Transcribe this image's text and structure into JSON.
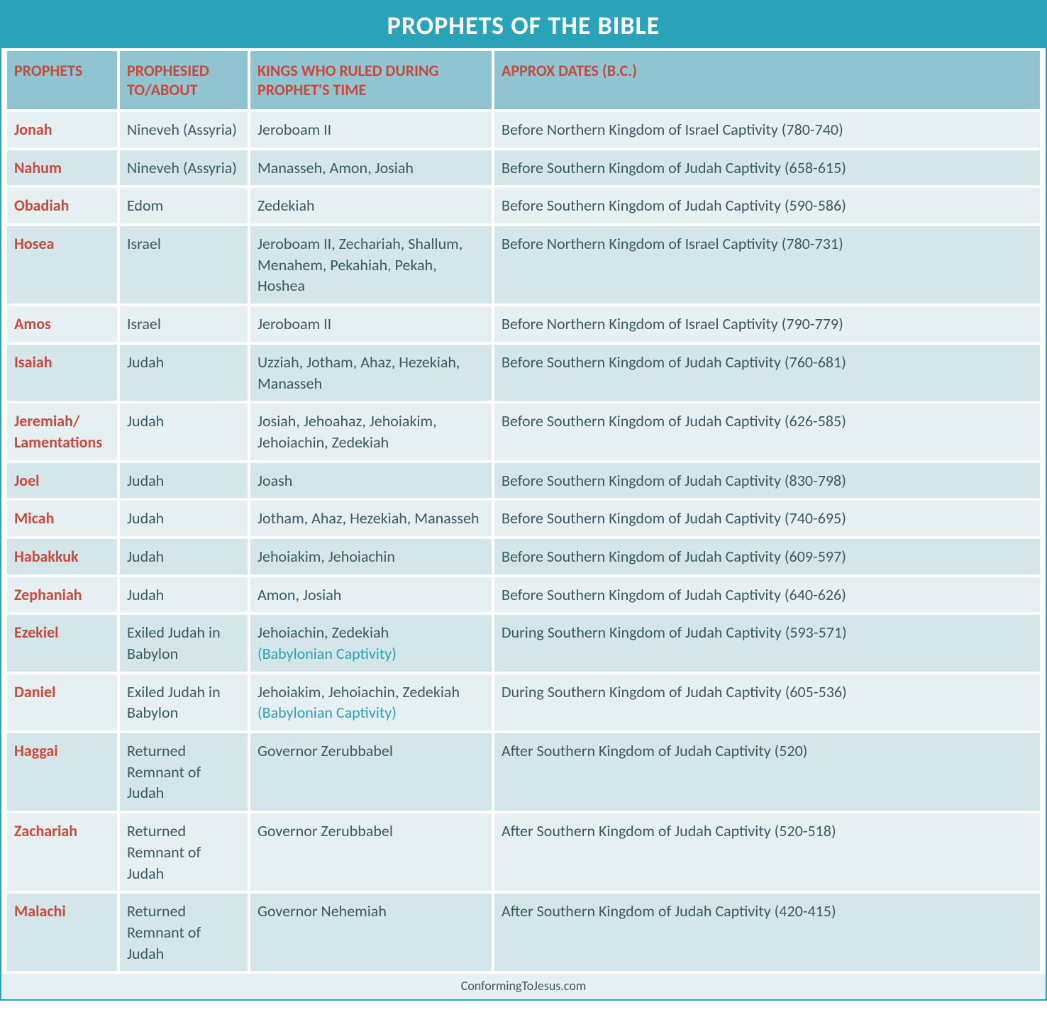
{
  "title": "PROPHETS OF THE BIBLE",
  "footer": "ConformingToJesus.com",
  "colors": {
    "border": "#2aa3b8",
    "titleBg": "#2aa3b8",
    "titleText": "#ffffff",
    "headerBg": "#8fc4d0",
    "headerText": "#c94a3b",
    "rowBg": "#d5e6eb",
    "altRowBg": "#e6f0f3",
    "prophetText": "#c94a3b",
    "bodyText": "#3a5a63",
    "noteText": "#2aa3b8",
    "footerBg": "#e6f0f3"
  },
  "columns": [
    "PROPHETS",
    "PROPHESIED TO/ABOUT",
    "KINGS WHO RULED DURING PROPHET'S TIME",
    "APPROX DATES (B.C.)"
  ],
  "rows": [
    {
      "prophet": "Jonah",
      "to": "Nineveh (Assyria)",
      "kings": "Jeroboam II",
      "note": "",
      "dates": "Before Northern Kingdom of Israel Captivity (780-740)"
    },
    {
      "prophet": "Nahum",
      "to": "Nineveh (Assyria)",
      "kings": "Manasseh, Amon, Josiah",
      "note": "",
      "dates": "Before Southern Kingdom of Judah Captivity (658-615)"
    },
    {
      "prophet": "Obadiah",
      "to": "Edom",
      "kings": "Zedekiah",
      "note": "",
      "dates": "Before Southern Kingdom of Judah Captivity (590-586)"
    },
    {
      "prophet": "Hosea",
      "to": "Israel",
      "kings": "Jeroboam II, Zechariah, Shallum, Menahem, Pekahiah, Pekah, Hoshea",
      "note": "",
      "dates": "Before Northern Kingdom of Israel Captivity (780-731)"
    },
    {
      "prophet": "Amos",
      "to": "Israel",
      "kings": "Jeroboam II",
      "note": "",
      "dates": "Before Northern Kingdom of Israel Captivity (790-779)"
    },
    {
      "prophet": "Isaiah",
      "to": "Judah",
      "kings": "Uzziah, Jotham, Ahaz, Hezekiah, Manasseh",
      "note": "",
      "dates": "Before Southern Kingdom of Judah Captivity (760-681)"
    },
    {
      "prophet": "Jeremiah/ Lamentations",
      "to": "Judah",
      "kings": "Josiah, Jehoahaz, Jehoiakim, Jehoiachin, Zedekiah",
      "note": "",
      "dates": "Before Southern Kingdom of Judah Captivity (626-585)"
    },
    {
      "prophet": "Joel",
      "to": "Judah",
      "kings": "Joash",
      "note": "",
      "dates": "Before Southern Kingdom of Judah Captivity (830-798)"
    },
    {
      "prophet": "Micah",
      "to": "Judah",
      "kings": "Jotham, Ahaz, Hezekiah, Manasseh",
      "note": "",
      "dates": "Before Southern Kingdom of Judah Captivity (740-695)"
    },
    {
      "prophet": "Habakkuk",
      "to": "Judah",
      "kings": "Jehoiakim, Jehoiachin",
      "note": "",
      "dates": "Before Southern Kingdom of Judah Captivity (609-597)"
    },
    {
      "prophet": "Zephaniah",
      "to": "Judah",
      "kings": "Amon, Josiah",
      "note": "",
      "dates": "Before Southern Kingdom of Judah Captivity (640-626)"
    },
    {
      "prophet": "Ezekiel",
      "to": "Exiled Judah in Babylon",
      "kings": "Jehoiachin, Zedekiah",
      "note": "(Babylonian Captivity)",
      "dates": "During Southern Kingdom of Judah Captivity (593-571)"
    },
    {
      "prophet": "Daniel",
      "to": "Exiled Judah in Babylon",
      "kings": "Jehoiakim, Jehoiachin, Zedekiah",
      "note": "(Babylonian Captivity)",
      "dates": "During Southern Kingdom of Judah Captivity (605-536)"
    },
    {
      "prophet": "Haggai",
      "to": "Returned Remnant of Judah",
      "kings": "Governor Zerubbabel",
      "note": "",
      "dates": "After Southern Kingdom of Judah Captivity (520)"
    },
    {
      "prophet": "Zachariah",
      "to": "Returned Remnant of Judah",
      "kings": "Governor Zerubbabel",
      "note": "",
      "dates": "After Southern Kingdom of Judah Captivity (520-518)"
    },
    {
      "prophet": "Malachi",
      "to": "Returned Remnant of Judah",
      "kings": "Governor Nehemiah",
      "note": "",
      "dates": "After Southern Kingdom of Judah Captivity (420-415)"
    }
  ]
}
